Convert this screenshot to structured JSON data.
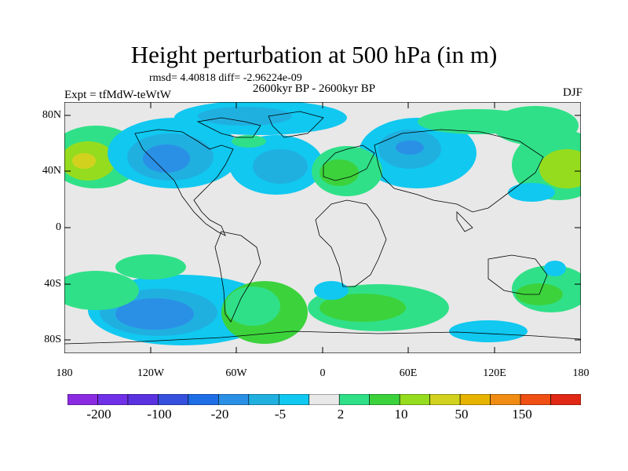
{
  "title": "Height perturbation at 500 hPa (in m)",
  "rmsd_text": "rmsd= 4.40818 diff= -2.96224e-09",
  "period_text": "2600kyr BP - 2600kyr BP",
  "expt_text": "Expt = tfMdW-teWtW",
  "season_text": "DJF",
  "map": {
    "projection": "cylindrical-equidistant",
    "lon_range": [
      -180,
      180
    ],
    "lat_range": [
      -90,
      90
    ],
    "lat_ticks": [
      "80N",
      "40N",
      "0",
      "40S",
      "80S"
    ],
    "lon_ticks": [
      "180",
      "120W",
      "60W",
      "0",
      "60E",
      "120E",
      "180"
    ],
    "field": "500 hPa height perturbation",
    "units": "m",
    "coastlines": "black outline"
  },
  "colorbar": {
    "colors": [
      "#8a2be2",
      "#7030e8",
      "#5a32e0",
      "#3450dc",
      "#1e6ee6",
      "#2a90e6",
      "#20b0e0",
      "#10c8f0",
      "#e8e8e8",
      "#30e088",
      "#3cd23c",
      "#96dc1e",
      "#d2d21e",
      "#e6b400",
      "#f08c14",
      "#f05014",
      "#e02814"
    ],
    "labels": [
      "-200",
      "-100",
      "-20",
      "-5",
      "2",
      "10",
      "50",
      "150"
    ]
  }
}
